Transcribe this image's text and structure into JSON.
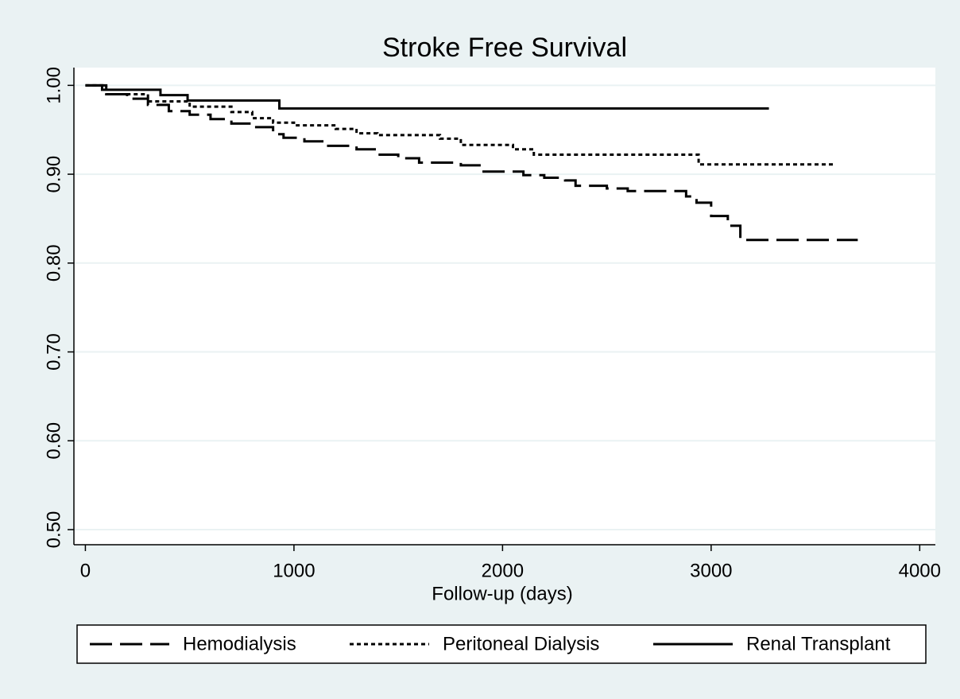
{
  "chart_data": {
    "type": "line",
    "drawstyle": "steps-post",
    "title": "Stroke Free Survival",
    "x_label": "Follow-up (days)",
    "xlim": [
      -55,
      4075
    ],
    "ylim": [
      0.483,
      1.02
    ],
    "xticks": [
      0,
      1000,
      2000,
      3000,
      4000
    ],
    "yticks": [
      {
        "value": 0.5,
        "label": "0.50"
      },
      {
        "value": 0.6,
        "label": "0.60"
      },
      {
        "value": 0.7,
        "label": "0.70"
      },
      {
        "value": 0.8,
        "label": "0.80"
      },
      {
        "value": 0.9,
        "label": "0.90"
      },
      {
        "value": 1.0,
        "label": "1.00"
      }
    ],
    "grid": true,
    "legend": "bottom",
    "series": [
      {
        "name": "Hemodialysis",
        "color": "#000000",
        "linestyle": "dashed",
        "x": [
          0,
          100,
          200,
          300,
          400,
          500,
          600,
          700,
          800,
          900,
          950,
          1050,
          1150,
          1300,
          1400,
          1500,
          1600,
          1800,
          1900,
          2100,
          2200,
          2300,
          2350,
          2500,
          2600,
          2880,
          2930,
          3000,
          3080,
          3140,
          3703
        ],
        "values": [
          1.0,
          0.99,
          0.985,
          0.978,
          0.971,
          0.967,
          0.962,
          0.957,
          0.953,
          0.945,
          0.941,
          0.937,
          0.932,
          0.928,
          0.922,
          0.918,
          0.913,
          0.91,
          0.903,
          0.899,
          0.896,
          0.893,
          0.887,
          0.884,
          0.881,
          0.875,
          0.868,
          0.853,
          0.842,
          0.826,
          0.826
        ]
      },
      {
        "name": "Peritoneal Dialysis",
        "color": "#000000",
        "linestyle": "dotted",
        "x": [
          0,
          100,
          300,
          500,
          700,
          800,
          900,
          1000,
          1200,
          1300,
          1400,
          1700,
          1800,
          2050,
          2150,
          2940,
          3589
        ],
        "values": [
          1.0,
          0.99,
          0.982,
          0.976,
          0.97,
          0.963,
          0.958,
          0.955,
          0.951,
          0.946,
          0.944,
          0.94,
          0.933,
          0.928,
          0.922,
          0.911,
          0.911
        ]
      },
      {
        "name": "Renal Transplant",
        "color": "#000000",
        "linestyle": "solid",
        "x": [
          0,
          80,
          360,
          490,
          930,
          3277
        ],
        "values": [
          1.0,
          0.995,
          0.989,
          0.983,
          0.974,
          0.974
        ]
      }
    ]
  }
}
